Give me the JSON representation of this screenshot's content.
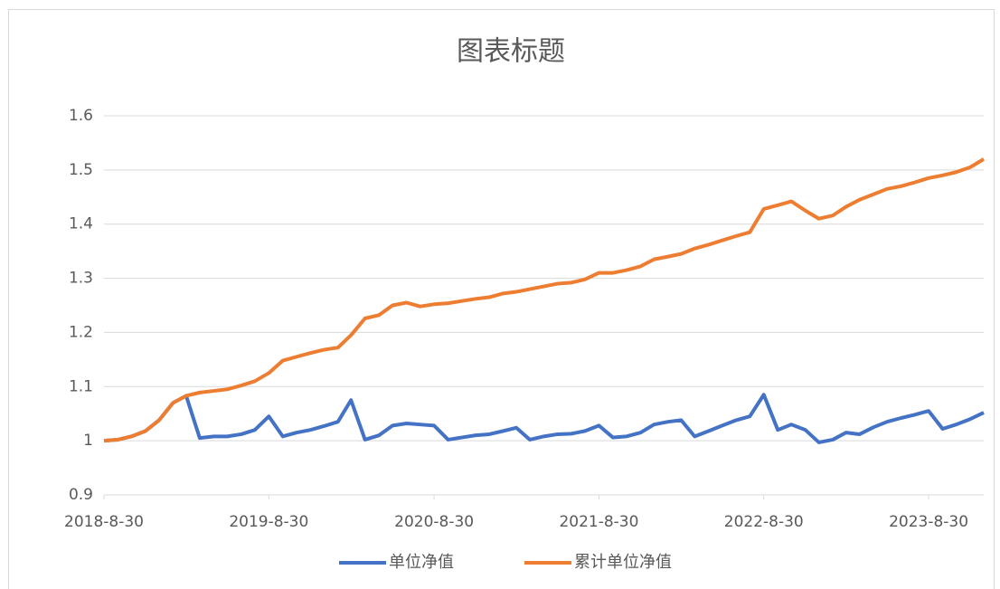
{
  "chart_data": {
    "type": "line",
    "title": "图表标题",
    "x": [
      "2018-8-30",
      "2018-9-30",
      "2018-10-30",
      "2018-11-30",
      "2018-12-30",
      "2019-1-30",
      "2019-2-28",
      "2019-3-30",
      "2019-4-30",
      "2019-5-30",
      "2019-6-30",
      "2019-7-30",
      "2019-8-30",
      "2019-9-30",
      "2019-10-30",
      "2019-11-30",
      "2019-12-30",
      "2020-1-30",
      "2020-2-28",
      "2020-3-30",
      "2020-4-30",
      "2020-5-30",
      "2020-6-30",
      "2020-7-30",
      "2020-8-30",
      "2020-9-30",
      "2020-10-30",
      "2020-11-30",
      "2020-12-30",
      "2021-1-30",
      "2021-2-28",
      "2021-3-30",
      "2021-4-30",
      "2021-5-30",
      "2021-6-30",
      "2021-7-30",
      "2021-8-30",
      "2021-9-30",
      "2021-10-30",
      "2021-11-30",
      "2021-12-30",
      "2022-1-30",
      "2022-2-28",
      "2022-3-30",
      "2022-4-30",
      "2022-5-30",
      "2022-6-30",
      "2022-7-30",
      "2022-8-30",
      "2022-9-30",
      "2022-10-30",
      "2022-11-30",
      "2022-12-30",
      "2023-1-30",
      "2023-2-28",
      "2023-3-30",
      "2023-4-30",
      "2023-5-30",
      "2023-6-30",
      "2023-7-30",
      "2023-8-30",
      "2023-9-30",
      "2023-10-30",
      "2023-11-30",
      "2023-12-30"
    ],
    "series": [
      {
        "name": "单位净值",
        "color": "#4472c4",
        "values": [
          1.0,
          1.002,
          1.008,
          1.018,
          1.038,
          1.07,
          1.083,
          1.005,
          1.008,
          1.008,
          1.012,
          1.02,
          1.045,
          1.008,
          1.015,
          1.02,
          1.027,
          1.035,
          1.075,
          1.002,
          1.01,
          1.028,
          1.032,
          1.03,
          1.028,
          1.002,
          1.006,
          1.01,
          1.012,
          1.018,
          1.024,
          1.002,
          1.008,
          1.012,
          1.013,
          1.018,
          1.028,
          1.006,
          1.008,
          1.015,
          1.03,
          1.035,
          1.038,
          1.008,
          1.018,
          1.028,
          1.038,
          1.045,
          1.085,
          1.02,
          1.03,
          1.02,
          0.997,
          1.002,
          1.015,
          1.012,
          1.025,
          1.035,
          1.042,
          1.048,
          1.055,
          1.022,
          1.03,
          1.04,
          1.052
        ]
      },
      {
        "name": "累计单位净值",
        "color": "#ed7d31",
        "values": [
          1.0,
          1.002,
          1.008,
          1.018,
          1.038,
          1.07,
          1.083,
          1.089,
          1.092,
          1.095,
          1.102,
          1.11,
          1.125,
          1.148,
          1.155,
          1.162,
          1.168,
          1.172,
          1.195,
          1.226,
          1.232,
          1.25,
          1.255,
          1.248,
          1.252,
          1.254,
          1.258,
          1.262,
          1.265,
          1.272,
          1.275,
          1.28,
          1.285,
          1.29,
          1.292,
          1.298,
          1.31,
          1.31,
          1.315,
          1.322,
          1.335,
          1.34,
          1.345,
          1.355,
          1.362,
          1.37,
          1.378,
          1.385,
          1.428,
          1.435,
          1.442,
          1.425,
          1.41,
          1.416,
          1.432,
          1.445,
          1.455,
          1.465,
          1.47,
          1.477,
          1.485,
          1.49,
          1.496,
          1.505,
          1.52
        ]
      }
    ],
    "xlim": [
      "2018-8-30",
      "2023-12-30"
    ],
    "xticks": [
      "2018-8-30",
      "2019-8-30",
      "2020-8-30",
      "2021-8-30",
      "2022-8-30",
      "2023-8-30"
    ],
    "ylim": [
      0.9,
      1.6
    ],
    "yticks": [
      0.9,
      1,
      1.1,
      1.2,
      1.3,
      1.4,
      1.5,
      1.6
    ],
    "grid": true,
    "legend": "bottom"
  }
}
